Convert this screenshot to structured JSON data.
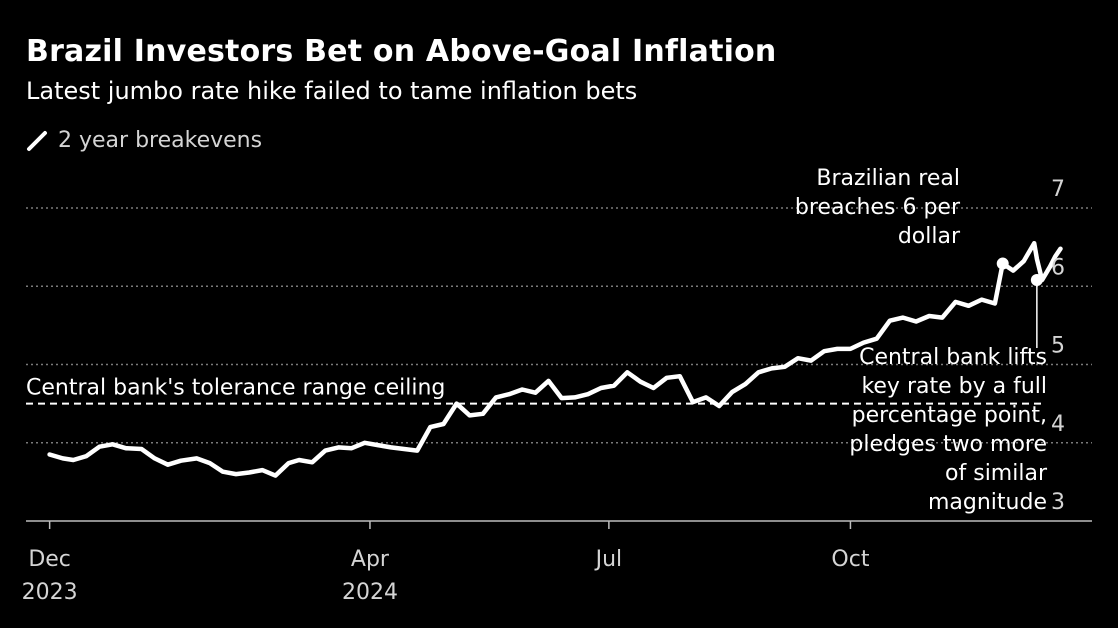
{
  "header": {
    "title": "Brazil Investors Bet on Above-Goal Inflation",
    "subtitle": "Latest jumbo rate hike failed to tame inflation bets"
  },
  "legend": {
    "label": "2 year breakevens"
  },
  "colors": {
    "background": "#000000",
    "line": "#ffffff",
    "grid": "#7a7a7a",
    "tick_text": "#d4d4d4"
  },
  "chart_data": {
    "type": "line",
    "title": "Brazil Investors Bet on Above-Goal Inflation",
    "subtitle": "Latest jumbo rate hike failed to tame inflation bets",
    "xlabel": "",
    "ylabel": "",
    "ylim": [
      3,
      7
    ],
    "xlim": [
      "2023-11-22",
      "2025-01-01"
    ],
    "y_ticks": [
      3,
      4,
      5,
      6,
      7
    ],
    "y_tick_labels": [
      "3",
      "4",
      "5",
      "6",
      "7"
    ],
    "x_ticks": [
      {
        "date": "2023-12-01",
        "label": [
          "Dec",
          "2023"
        ]
      },
      {
        "date": "2024-04-01",
        "label": [
          "Apr",
          "2024"
        ]
      },
      {
        "date": "2024-07-01",
        "label": [
          "Jul",
          ""
        ]
      },
      {
        "date": "2024-10-01",
        "label": [
          "Oct",
          ""
        ]
      }
    ],
    "grid": "horizontal dotted",
    "legend_position": "top-left",
    "series": [
      {
        "name": "2 year breakevens",
        "x": [
          "2023-12-01",
          "2023-12-06",
          "2023-12-10",
          "2023-12-15",
          "2023-12-20",
          "2023-12-25",
          "2023-12-30",
          "2024-01-05",
          "2024-01-10",
          "2024-01-15",
          "2024-01-20",
          "2024-01-26",
          "2024-01-31",
          "2024-02-05",
          "2024-02-10",
          "2024-02-15",
          "2024-02-20",
          "2024-02-25",
          "2024-03-01",
          "2024-03-05",
          "2024-03-10",
          "2024-03-15",
          "2024-03-20",
          "2024-03-25",
          "2024-03-30",
          "2024-04-04",
          "2024-04-09",
          "2024-04-14",
          "2024-04-19",
          "2024-04-24",
          "2024-04-29",
          "2024-05-04",
          "2024-05-09",
          "2024-05-14",
          "2024-05-19",
          "2024-05-24",
          "2024-05-29",
          "2024-06-03",
          "2024-06-08",
          "2024-06-13",
          "2024-06-18",
          "2024-06-23",
          "2024-06-28",
          "2024-07-03",
          "2024-07-08",
          "2024-07-13",
          "2024-07-18",
          "2024-07-23",
          "2024-07-28",
          "2024-08-02",
          "2024-08-07",
          "2024-08-12",
          "2024-08-17",
          "2024-08-22",
          "2024-08-27",
          "2024-09-01",
          "2024-09-06",
          "2024-09-11",
          "2024-09-16",
          "2024-09-21",
          "2024-09-26",
          "2024-10-01",
          "2024-10-06",
          "2024-10-11",
          "2024-10-16",
          "2024-10-21",
          "2024-10-26",
          "2024-10-31",
          "2024-11-05",
          "2024-11-10",
          "2024-11-15",
          "2024-11-20",
          "2024-11-25",
          "2024-11-28",
          "2024-12-02",
          "2024-12-06",
          "2024-12-10",
          "2024-12-11",
          "2024-12-13",
          "2024-12-16",
          "2024-12-18",
          "2024-12-20"
        ],
        "y": [
          3.85,
          3.8,
          3.78,
          3.83,
          3.95,
          3.98,
          3.93,
          3.92,
          3.8,
          3.72,
          3.77,
          3.8,
          3.74,
          3.63,
          3.6,
          3.62,
          3.65,
          3.58,
          3.74,
          3.78,
          3.75,
          3.9,
          3.94,
          3.93,
          4.0,
          3.97,
          3.94,
          3.92,
          3.9,
          4.2,
          4.24,
          4.5,
          4.35,
          4.37,
          4.58,
          4.62,
          4.68,
          4.64,
          4.79,
          4.57,
          4.58,
          4.62,
          4.7,
          4.73,
          4.9,
          4.78,
          4.7,
          4.83,
          4.85,
          4.52,
          4.58,
          4.47,
          4.65,
          4.75,
          4.9,
          4.95,
          4.97,
          5.08,
          5.05,
          5.17,
          5.2,
          5.2,
          5.28,
          5.33,
          5.56,
          5.6,
          5.55,
          5.62,
          5.6,
          5.8,
          5.75,
          5.83,
          5.78,
          6.29,
          6.2,
          6.32,
          6.55,
          6.35,
          6.08,
          6.25,
          6.38,
          6.48
        ]
      }
    ],
    "reference_lines": [
      {
        "label": "Central bank's tolerance range ceiling",
        "y": 4.5,
        "style": "dashed"
      }
    ],
    "annotations": [
      {
        "text": [
          "Brazilian real",
          "breaches 6 per",
          "dollar"
        ],
        "x": "2024-11-28",
        "y": 6.29
      },
      {
        "text": [
          "Central bank lifts",
          "key rate by a full",
          "percentage point,",
          "pledges two more",
          "of similar",
          "magnitude"
        ],
        "x": "2024-12-11",
        "y": 6.08
      }
    ]
  }
}
